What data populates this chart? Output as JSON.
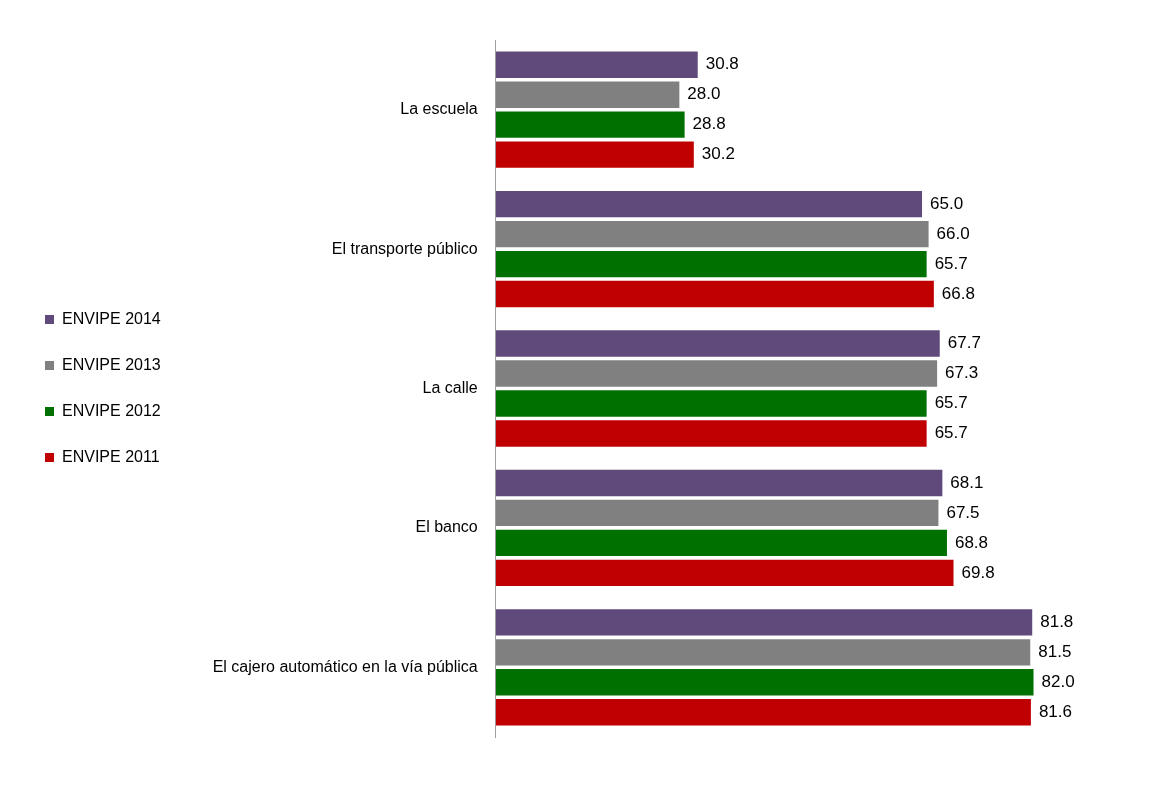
{
  "chart_data": {
    "type": "bar",
    "orientation": "horizontal",
    "categories": [
      "La escuela",
      "El transporte público",
      "La calle",
      "El banco",
      "El cajero automático en la vía pública"
    ],
    "series": [
      {
        "name": "ENVIPE 2014",
        "color": "#604a7b",
        "values": [
          30.8,
          65.0,
          67.7,
          68.1,
          81.8
        ],
        "value_labels": [
          "30.8",
          "65.0",
          "67.7",
          "68.1",
          "81.8"
        ]
      },
      {
        "name": "ENVIPE 2013",
        "color": "#808080",
        "values": [
          28.0,
          66.0,
          67.3,
          67.5,
          81.5
        ],
        "value_labels": [
          "28.0",
          "66.0",
          "67.3",
          "67.5",
          "81.5"
        ]
      },
      {
        "name": "ENVIPE 2012",
        "color": "#007000",
        "values": [
          28.8,
          65.7,
          65.7,
          68.8,
          82.0
        ],
        "value_labels": [
          "28.8",
          "65.7",
          "65.7",
          "68.8",
          "82.0"
        ]
      },
      {
        "name": "ENVIPE 2011",
        "color": "#c00000",
        "values": [
          30.2,
          66.8,
          65.7,
          69.8,
          81.6
        ],
        "value_labels": [
          "30.2",
          "66.8",
          "65.7",
          "69.8",
          "81.6"
        ]
      }
    ],
    "legend": "left",
    "tick_labels": "y",
    "grid": false
  }
}
